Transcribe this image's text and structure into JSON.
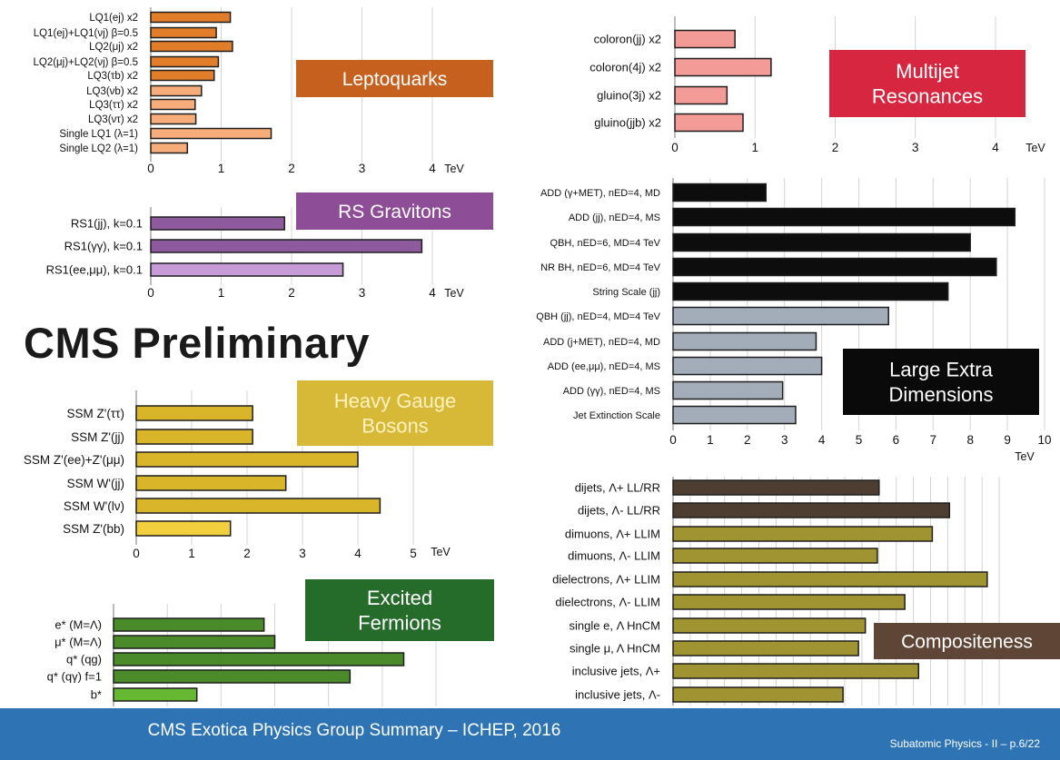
{
  "headline": "CMS Preliminary",
  "footer": {
    "title": "CMS Exotica Physics Group Summary – ICHEP, 2016",
    "page": "Subatomic Physics - II – p.6/22"
  },
  "chart_data": [
    {
      "id": "leptoquarks",
      "type": "bar",
      "orientation": "horizontal",
      "banner": "Leptoquarks",
      "unit_label": "TeV",
      "xlim": [
        0,
        4
      ],
      "xticks": [
        0,
        1,
        2,
        3,
        4
      ],
      "categories": [
        "LQ1(ej) x2",
        "LQ1(ej)+LQ1(νj) β=0.5",
        "LQ2(μj) x2",
        "LQ2(μj)+LQ2(νj) β=0.5",
        "LQ3(τb) x2",
        "LQ3(νb) x2",
        "LQ3(ττ) x2",
        "LQ3(ντ) x2",
        "Single LQ1 (λ=1)",
        "Single LQ2 (λ=1)"
      ],
      "values": [
        1.13,
        0.93,
        1.16,
        0.96,
        0.9,
        0.72,
        0.63,
        0.64,
        1.71,
        0.52
      ],
      "grid": true,
      "colors": {
        "bar": "#e27d2a",
        "highlight": "#f7ad7a",
        "banner": "#c5601f"
      }
    },
    {
      "id": "rs-gravitons",
      "type": "bar",
      "orientation": "horizontal",
      "banner": "RS Gravitons",
      "unit_label": "TeV",
      "xlim": [
        0,
        4
      ],
      "xticks": [
        0,
        1,
        2,
        3,
        4
      ],
      "categories": [
        "RS1(jj), k=0.1",
        "RS1(γγ), k=0.1",
        "RS1(ee,μμ), k=0.1"
      ],
      "values": [
        1.9,
        3.85,
        2.73
      ],
      "grid": true,
      "colors": {
        "bar": "#8e5a9e",
        "highlight": "#c79ad8",
        "banner": "#8e4d97"
      }
    },
    {
      "id": "heavy-gauge-bosons",
      "type": "bar",
      "orientation": "horizontal",
      "banner": "Heavy Gauge Bosons",
      "unit_label": "TeV",
      "xlim": [
        0,
        5
      ],
      "xticks": [
        0,
        1,
        2,
        3,
        4,
        5
      ],
      "categories": [
        "SSM Z'(ττ)",
        "SSM Z'(jj)",
        "SSM Z'(ee)+Z'(μμ)",
        "SSM W'(jj)",
        "SSM W'(lν)",
        "SSM Z'(bb)"
      ],
      "values": [
        2.1,
        2.1,
        4.0,
        2.7,
        4.4,
        1.7
      ],
      "grid": true,
      "colors": {
        "bar": "#d9b52a",
        "highlight": "#f2cf3c",
        "banner": "#d8b937"
      }
    },
    {
      "id": "excited-fermions",
      "type": "bar",
      "orientation": "horizontal",
      "banner": "Excited Fermions",
      "unit_label": "TeV",
      "xlim": [
        0,
        6
      ],
      "xticks": [
        0,
        1,
        2,
        3,
        4,
        5,
        6
      ],
      "categories": [
        "e* (M=Λ)",
        "μ* (M=Λ)",
        "q* (qg)",
        "q* (qγ) f=1",
        "b*"
      ],
      "values": [
        2.8,
        3.0,
        5.4,
        4.4,
        1.55
      ],
      "grid": true,
      "colors": {
        "bar": "#4a8a2a",
        "highlight": "#66b832",
        "banner": "#256b2a"
      }
    },
    {
      "id": "multijet-resonances",
      "type": "bar",
      "orientation": "horizontal",
      "banner": "Multijet Resonances",
      "unit_label": "TeV",
      "xlim": [
        0,
        4
      ],
      "xticks": [
        0,
        1,
        2,
        3,
        4
      ],
      "categories": [
        "coloron(jj) x2",
        "coloron(4j) x2",
        "gluino(3j) x2",
        "gluino(jjb) x2"
      ],
      "values": [
        0.75,
        1.2,
        0.65,
        0.85
      ],
      "grid": true,
      "colors": {
        "bar": "#f39b96",
        "banner": "#d7263f"
      }
    },
    {
      "id": "large-extra-dimensions",
      "type": "bar",
      "orientation": "horizontal",
      "banner": "Large Extra Dimensions",
      "unit_label": "TeV",
      "xlim": [
        0,
        10
      ],
      "xticks": [
        0,
        1,
        2,
        3,
        4,
        5,
        6,
        7,
        8,
        9,
        10
      ],
      "categories": [
        "ADD (γ+MET), nED=4, MD",
        "ADD (jj), nED=4, MS",
        "QBH, nED=6, MD=4 TeV",
        "NR BH, nED=6, MD=4 TeV",
        "String Scale (jj)",
        "QBH (jj), nED=4, MD=4 TeV",
        "ADD (j+MET), nED=4, MD",
        "ADD (ee,μμ), nED=4, MS",
        "ADD (γγ), nED=4, MS",
        "Jet Extinction Scale"
      ],
      "values": [
        2.5,
        9.2,
        8.0,
        8.7,
        7.4,
        5.8,
        3.85,
        4.0,
        2.95,
        3.3
      ],
      "grid": true,
      "colors": {
        "bar": "#0d0d0d",
        "light": "#a3acb9",
        "banner": "#0a0a0a"
      }
    },
    {
      "id": "compositeness",
      "type": "bar",
      "orientation": "horizontal",
      "banner": "Compositeness",
      "unit_label": "TeV",
      "xlim": [
        0,
        20
      ],
      "xticks": [
        0,
        1,
        2,
        3,
        4,
        5,
        6,
        7,
        8,
        9,
        10,
        11,
        12,
        13,
        14,
        15,
        16,
        17,
        18,
        19
      ],
      "categories": [
        "dijets, Λ+ LL/RR",
        "dijets, Λ- LL/RR",
        "dimuons, Λ+ LLIM",
        "dimuons, Λ- LLIM",
        "dielectrons, Λ+ LLIM",
        "dielectrons, Λ- LLIM",
        "single e, Λ HnCM",
        "single μ, Λ HnCM",
        "inclusive jets, Λ+",
        "inclusive jets, Λ-"
      ],
      "values": [
        12.0,
        16.1,
        15.1,
        11.9,
        18.3,
        13.5,
        11.2,
        10.8,
        14.3,
        9.9
      ],
      "grid": true,
      "colors": {
        "bar": "#a09332",
        "dark": "#4d3e31",
        "banner": "#5f4536"
      }
    }
  ]
}
